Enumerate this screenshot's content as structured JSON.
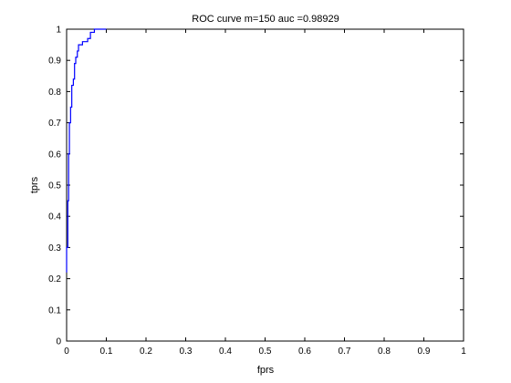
{
  "chart_data": {
    "type": "line",
    "title": "ROC curve m=150 auc =0.98929",
    "xlabel": "fprs",
    "ylabel": "tprs",
    "xlim": [
      0,
      1
    ],
    "ylim": [
      0,
      1
    ],
    "xticks": [
      0,
      0.1,
      0.2,
      0.3,
      0.4,
      0.5,
      0.6,
      0.7,
      0.8,
      0.9,
      1
    ],
    "yticks": [
      0,
      0.1,
      0.2,
      0.3,
      0.4,
      0.5,
      0.6,
      0.7,
      0.8,
      0.9,
      1
    ],
    "xtick_labels": [
      "0",
      "0.1",
      "0.2",
      "0.3",
      "0.4",
      "0.5",
      "0.6",
      "0.7",
      "0.8",
      "0.9",
      "1"
    ],
    "ytick_labels": [
      "0",
      "0.1",
      "0.2",
      "0.3",
      "0.4",
      "0.5",
      "0.6",
      "0.7",
      "0.8",
      "0.9",
      "1"
    ],
    "grid": false,
    "line_color": "#0000ff",
    "series": [
      {
        "x": [
          0,
          0,
          0.003,
          0.003,
          0.005,
          0.005,
          0.007,
          0.007,
          0.01,
          0.01,
          0.013,
          0.013,
          0.017,
          0.017,
          0.02,
          0.02,
          0.023,
          0.023,
          0.027,
          0.027,
          0.03,
          0.03,
          0.04,
          0.04,
          0.053,
          0.053,
          0.06,
          0.06,
          0.07,
          0.07,
          0.083,
          0.083,
          0.1,
          0.1
        ],
        "y": [
          0.22,
          0.3,
          0.3,
          0.45,
          0.45,
          0.6,
          0.6,
          0.7,
          0.7,
          0.75,
          0.75,
          0.82,
          0.82,
          0.84,
          0.84,
          0.89,
          0.89,
          0.91,
          0.91,
          0.93,
          0.93,
          0.95,
          0.95,
          0.96,
          0.96,
          0.97,
          0.97,
          0.99,
          0.99,
          1.0,
          1.0,
          1.0,
          1.0,
          1.0
        ]
      }
    ]
  }
}
